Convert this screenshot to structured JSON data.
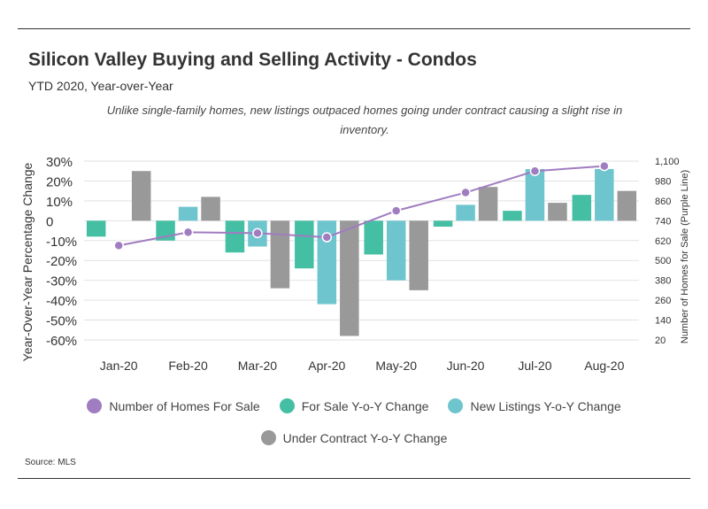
{
  "header": {
    "title": "Silicon Valley Buying and Selling Activity - Condos",
    "subtitle": "YTD 2020, Year-over-Year",
    "note": "Unlike single-family homes, new listings outpaced homes going under contract causing a slight rise in inventory."
  },
  "footer": {
    "source": "Source:  MLS"
  },
  "colors": {
    "line": "#a07cc0",
    "for_sale": "#45bfa3",
    "new_listings": "#6ec5ce",
    "under_contract": "#999999",
    "grid": "#e2e2e2",
    "axis_text": "#333333"
  },
  "chart_data": {
    "type": "bar",
    "categories": [
      "Jan-20",
      "Feb-20",
      "Mar-20",
      "Apr-20",
      "May-20",
      "Jun-20",
      "Jul-20",
      "Aug-20"
    ],
    "ylabel": "Year-Over-Year Percentage Change",
    "y2label": "Number of Homes for Sale (Purple Line)",
    "ylim": [
      -60,
      30
    ],
    "yticks": [
      30,
      20,
      10,
      0,
      -10,
      -20,
      -30,
      -40,
      -50,
      -60
    ],
    "ytick_labels": [
      "30%",
      "20%",
      "10%",
      "0",
      "-10%",
      "-20%",
      "-30%",
      "-40%",
      "-50%",
      "-60%"
    ],
    "y2lim": [
      20,
      1100
    ],
    "y2ticks": [
      1100,
      980,
      860,
      740,
      620,
      500,
      380,
      260,
      140,
      20
    ],
    "y2tick_labels": [
      "1,100",
      "980",
      "860",
      "740",
      "620",
      "500",
      "380",
      "260",
      "140",
      "20"
    ],
    "grid": true,
    "series": [
      {
        "name": "For Sale Y-o-Y Change",
        "kind": "bar",
        "axis": "left",
        "values": [
          -8,
          -10,
          -16,
          -24,
          -17,
          -3,
          5,
          13
        ]
      },
      {
        "name": "New Listings Y-o-Y Change",
        "kind": "bar",
        "axis": "left",
        "values": [
          null,
          7,
          -13,
          -42,
          -30,
          8,
          26,
          26
        ]
      },
      {
        "name": "Under Contract Y-o-Y Change",
        "kind": "bar",
        "axis": "left",
        "values": [
          25,
          12,
          -34,
          -58,
          -35,
          17,
          9,
          15
        ]
      },
      {
        "name": "Number of Homes For Sale",
        "kind": "line",
        "axis": "right",
        "values": [
          590,
          670,
          665,
          640,
          800,
          910,
          1040,
          1070
        ]
      }
    ],
    "legend": {
      "placement": "bottom",
      "rows": [
        [
          "Number of Homes For Sale",
          "For Sale Y-o-Y Change",
          "New Listings Y-o-Y Change"
        ],
        [
          "Under Contract Y-o-Y Change"
        ]
      ]
    }
  }
}
